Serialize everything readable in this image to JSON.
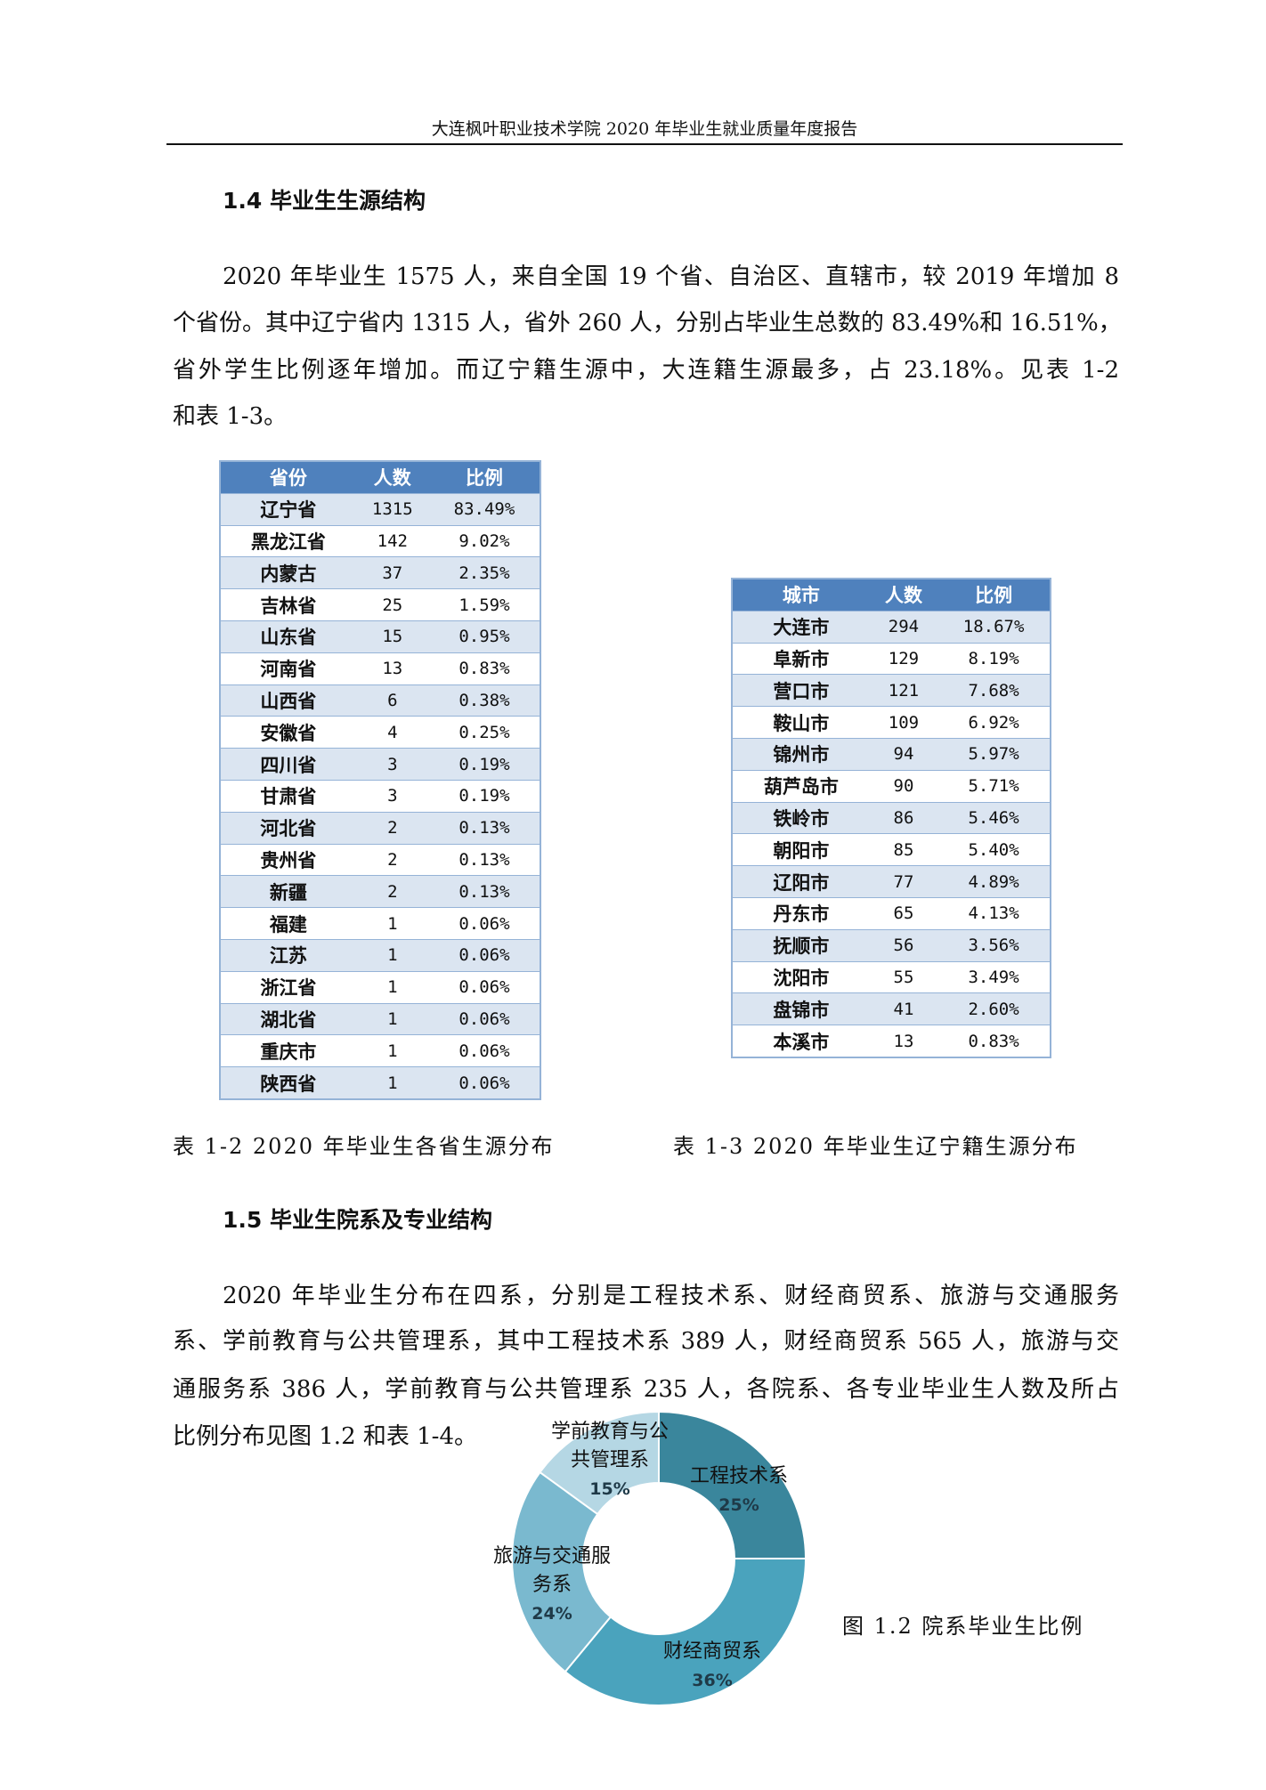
{
  "header": {
    "title": "大连枫叶职业技术学院 2020 年毕业生就业质量年度报告"
  },
  "section1": {
    "heading": "1.4 毕业生生源结构",
    "lines": [
      "2020 年毕业生 1575 人，来自全国 19 个省、自治区、直辖市，较 2019 年增加 8",
      "个省份。其中辽宁省内 1315 人，省外 260 人，分别占毕业生总数的 83.49%和 16.51%，",
      "省外学生比例逐年增加。而辽宁籍生源中，大连籍生源最多，占 23.18%。见表 1-2",
      "和表 1-3。"
    ]
  },
  "table1": {
    "headers": [
      "省份",
      "人数",
      "比例"
    ],
    "caption": "表 1-2 2020 年毕业生各省生源分布",
    "header_color": "#4f81bd",
    "alt_color": "#dbe5f1",
    "rows": [
      [
        "辽宁省",
        "1315",
        "83.49%"
      ],
      [
        "黑龙江省",
        "142",
        "9.02%"
      ],
      [
        "内蒙古",
        "37",
        "2.35%"
      ],
      [
        "吉林省",
        "25",
        "1.59%"
      ],
      [
        "山东省",
        "15",
        "0.95%"
      ],
      [
        "河南省",
        "13",
        "0.83%"
      ],
      [
        "山西省",
        "6",
        "0.38%"
      ],
      [
        "安徽省",
        "4",
        "0.25%"
      ],
      [
        "四川省",
        "3",
        "0.19%"
      ],
      [
        "甘肃省",
        "3",
        "0.19%"
      ],
      [
        "河北省",
        "2",
        "0.13%"
      ],
      [
        "贵州省",
        "2",
        "0.13%"
      ],
      [
        "新疆",
        "2",
        "0.13%"
      ],
      [
        "福建",
        "1",
        "0.06%"
      ],
      [
        "江苏",
        "1",
        "0.06%"
      ],
      [
        "浙江省",
        "1",
        "0.06%"
      ],
      [
        "湖北省",
        "1",
        "0.06%"
      ],
      [
        "重庆市",
        "1",
        "0.06%"
      ],
      [
        "陕西省",
        "1",
        "0.06%"
      ]
    ]
  },
  "table2": {
    "headers": [
      "城市",
      "人数",
      "比例"
    ],
    "caption": "表 1-3 2020 年毕业生辽宁籍生源分布",
    "rows": [
      [
        "大连市",
        "294",
        "18.67%"
      ],
      [
        "阜新市",
        "129",
        "8.19%"
      ],
      [
        "营口市",
        "121",
        "7.68%"
      ],
      [
        "鞍山市",
        "109",
        "6.92%"
      ],
      [
        "锦州市",
        "94",
        "5.97%"
      ],
      [
        "葫芦岛市",
        "90",
        "5.71%"
      ],
      [
        "铁岭市",
        "86",
        "5.46%"
      ],
      [
        "朝阳市",
        "85",
        "5.40%"
      ],
      [
        "辽阳市",
        "77",
        "4.89%"
      ],
      [
        "丹东市",
        "65",
        "4.13%"
      ],
      [
        "抚顺市",
        "56",
        "3.56%"
      ],
      [
        "沈阳市",
        "55",
        "3.49%"
      ],
      [
        "盘锦市",
        "41",
        "2.60%"
      ],
      [
        "本溪市",
        "13",
        "0.83%"
      ]
    ]
  },
  "section2": {
    "heading": "1.5 毕业生院系及专业结构",
    "lines": [
      "2020 年毕业生分布在四系，分别是工程技术系、财经商贸系、旅游与交通服务",
      "系、学前教育与公共管理系，其中工程技术系 389 人，财经商贸系 565 人，旅游与交",
      "通服务系 386 人，学前教育与公共管理系 235 人，各院系、各专业毕业生人数及所占",
      "比例分布见图 1.2 和表 1-4。"
    ]
  },
  "chart_data": {
    "type": "pie",
    "donut": true,
    "caption": "图 1.2 院系毕业生比例",
    "slices": [
      {
        "label": [
          "工程技术系"
        ],
        "value": 25,
        "text": "25%",
        "color": "#3a869c"
      },
      {
        "label": [
          "财经商贸系"
        ],
        "value": 36,
        "text": "36%",
        "color": "#4aa3bd"
      },
      {
        "label": [
          "旅游与交通服",
          "务系"
        ],
        "value": 24,
        "text": "24%",
        "color": "#7ab9cf"
      },
      {
        "label": [
          "学前教育与公",
          "共管理系"
        ],
        "value": 15,
        "text": "15%",
        "color": "#b5d7e4"
      }
    ]
  }
}
